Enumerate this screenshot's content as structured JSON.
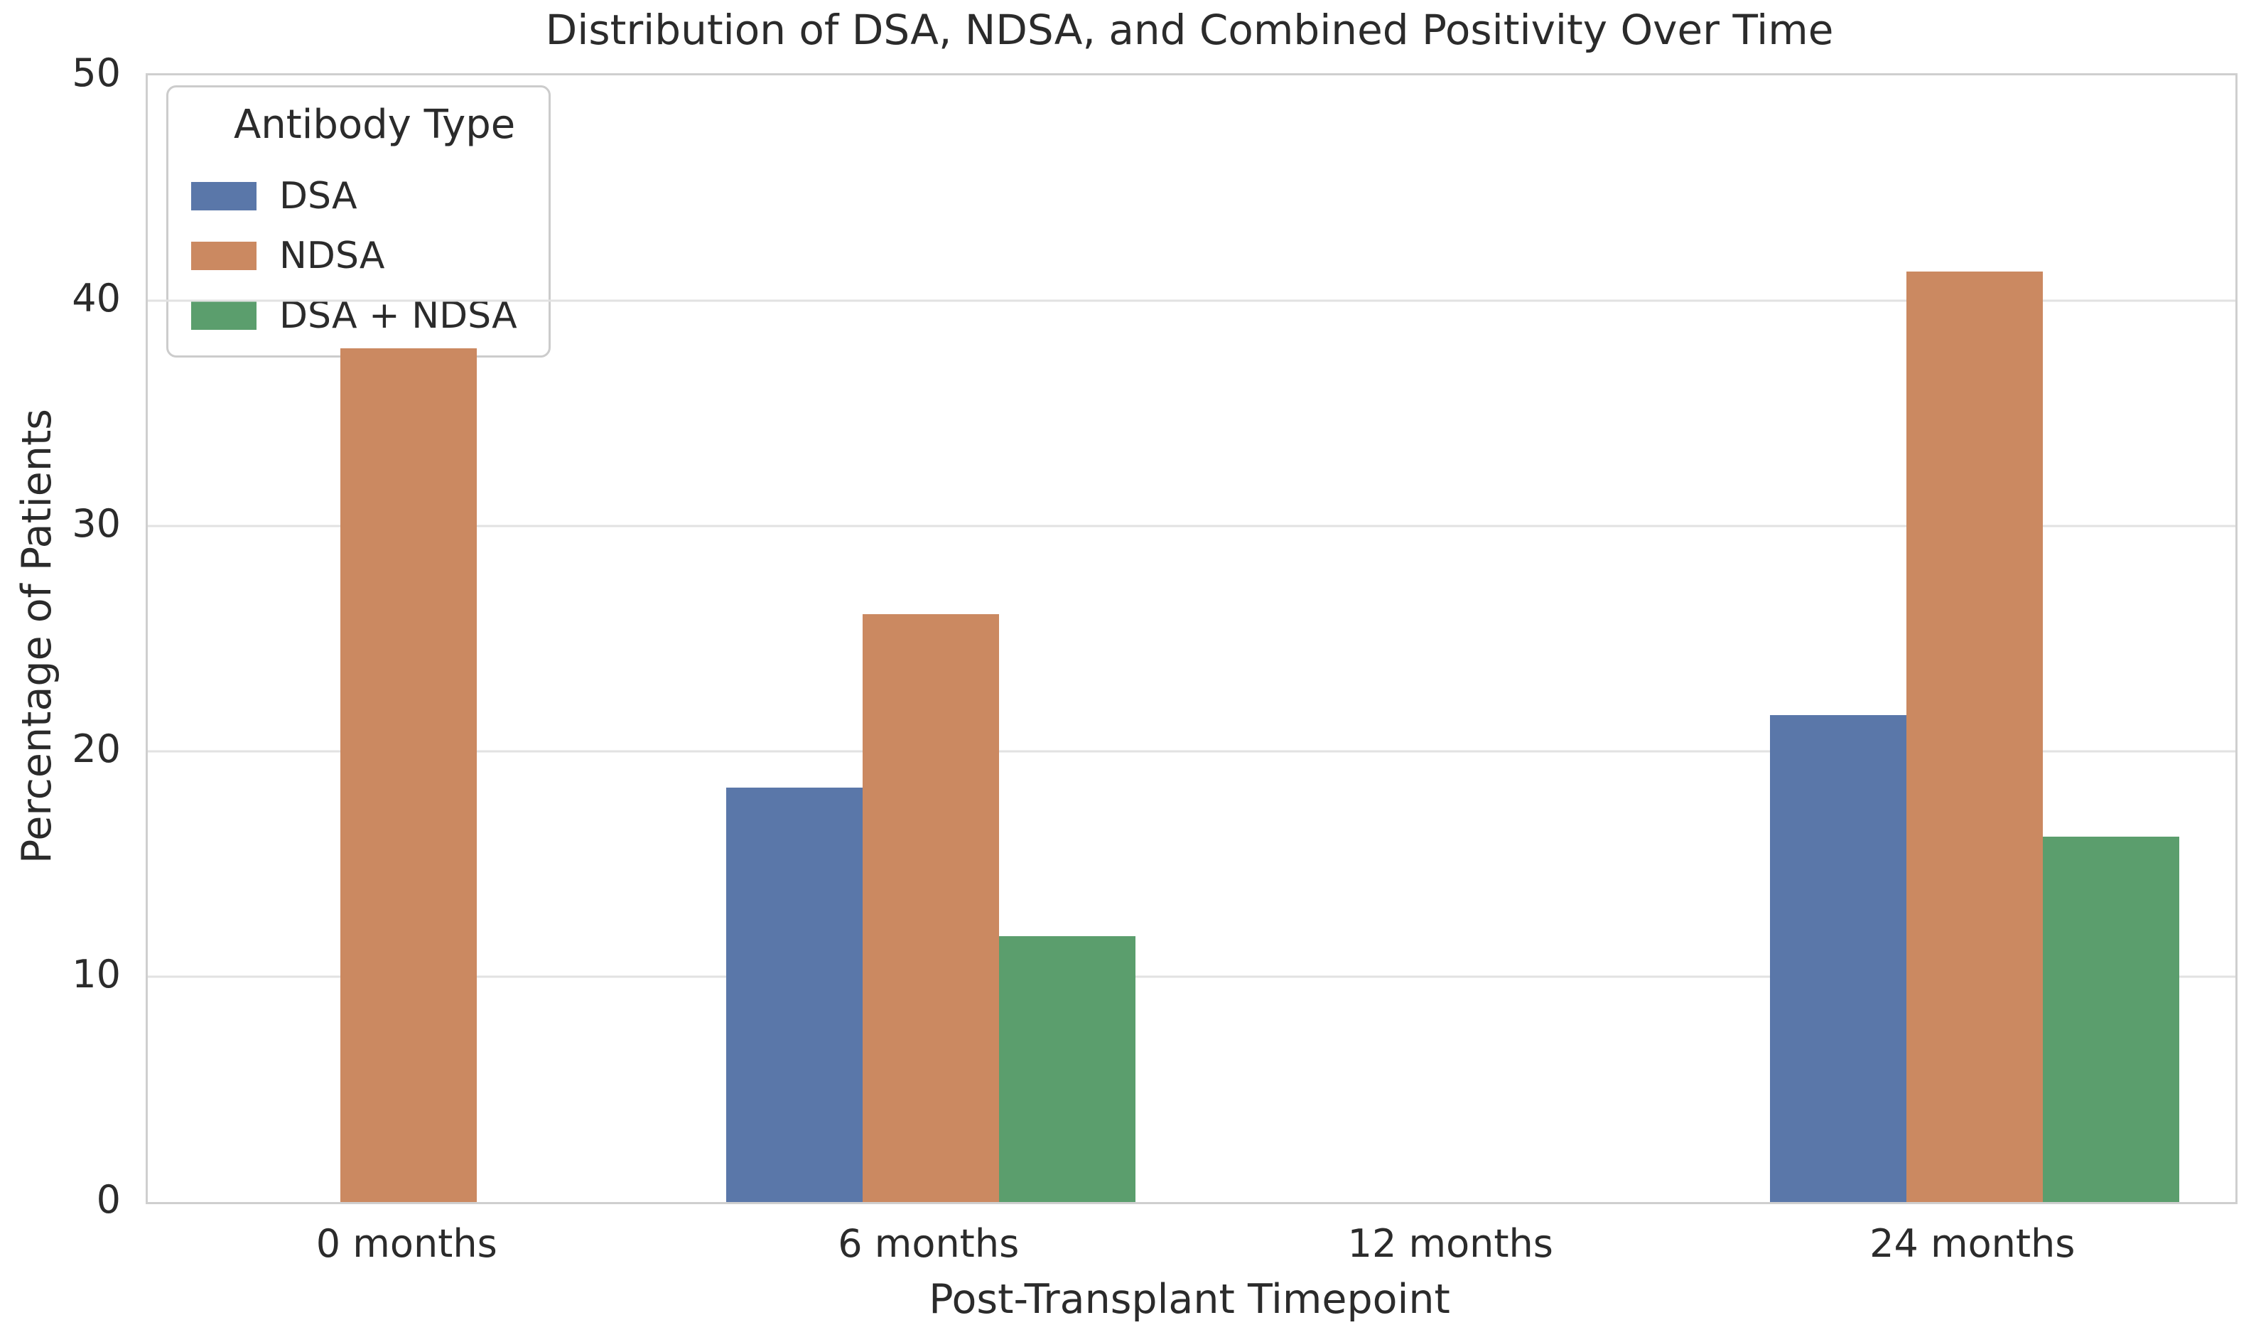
{
  "chart_data": {
    "type": "bar",
    "title": "Distribution of DSA, NDSA, and Combined Positivity Over Time",
    "xlabel": "Post-Transplant Timepoint",
    "ylabel": "Percentage of Patients",
    "categories": [
      "0 months",
      "6 months",
      "12 months",
      "24 months"
    ],
    "series": [
      {
        "name": "DSA",
        "color": "#5a77a9",
        "values": [
          0,
          18.4,
          0,
          21.6
        ]
      },
      {
        "name": "NDSA",
        "color": "#cb8961",
        "values": [
          37.9,
          26.1,
          0,
          41.3
        ]
      },
      {
        "name": "DSA + NDSA",
        "color": "#5b9e6d",
        "values": [
          0,
          11.8,
          0,
          16.2
        ]
      }
    ],
    "ylim": [
      0,
      50
    ],
    "yticks": [
      0,
      10,
      20,
      30,
      40,
      50
    ],
    "grid": true,
    "legend": {
      "title": "Antibody Type",
      "position": "upper left"
    },
    "grid_color": "#e2e2e2",
    "spine_color": "#cfcfcf"
  }
}
